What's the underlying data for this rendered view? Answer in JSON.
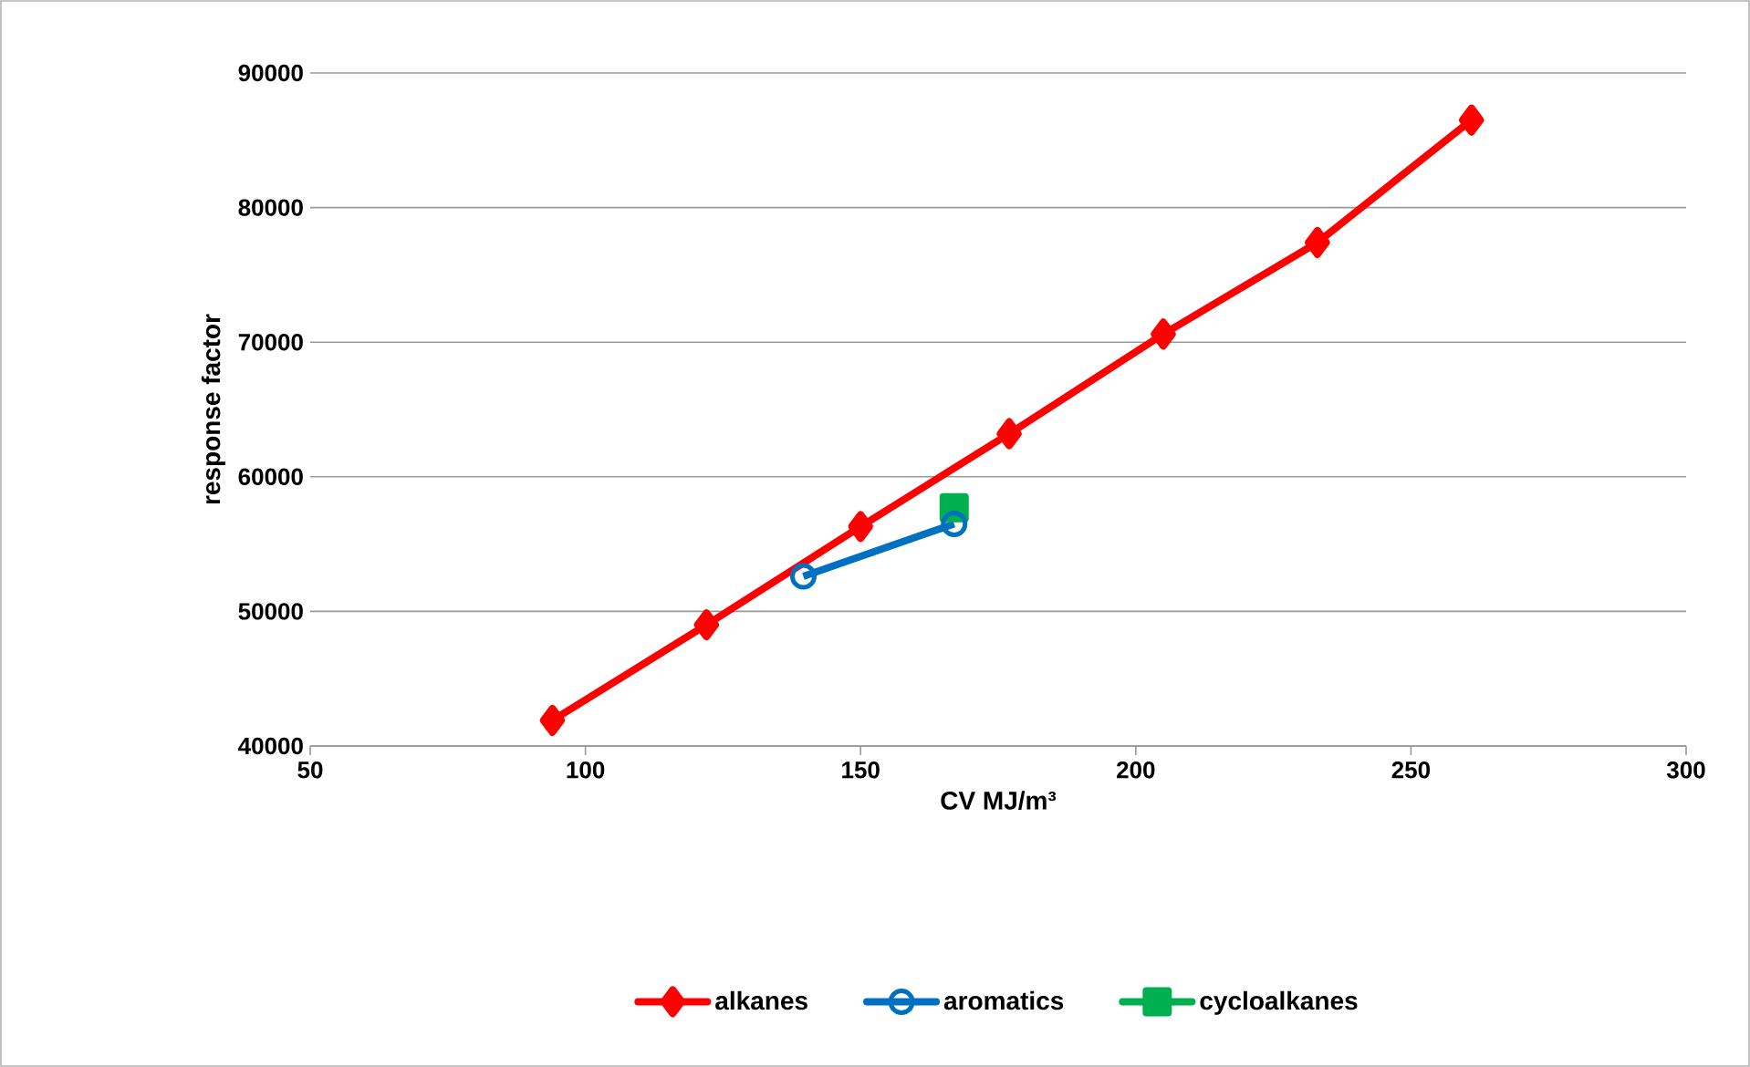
{
  "chart_data": {
    "type": "line",
    "xlabel": "CV MJ/m³",
    "ylabel": "response factor",
    "xlim": [
      50,
      300
    ],
    "xticks": [
      50,
      100,
      150,
      200,
      250,
      300
    ],
    "ylim": [
      40000,
      90000
    ],
    "yticks": [
      40000,
      50000,
      60000,
      70000,
      80000,
      90000
    ],
    "grid": "y",
    "legend": "bottom",
    "line_style": "solid",
    "series": [
      {
        "name": "alkanes",
        "color": "#ff0000",
        "marker": "diamond",
        "x": [
          94,
          122,
          150,
          177,
          205,
          233,
          261
        ],
        "values": [
          41900,
          49000,
          56300,
          63200,
          70600,
          77400,
          86500
        ]
      },
      {
        "name": "aromatics",
        "color": "#0070c0",
        "marker": "circle",
        "x": [
          139.6,
          167
        ],
        "values": [
          52600,
          56500
        ]
      },
      {
        "name": "cycloalkanes",
        "color": "#00b050",
        "marker": "square",
        "x": [
          167
        ],
        "values": [
          57700
        ]
      }
    ]
  }
}
